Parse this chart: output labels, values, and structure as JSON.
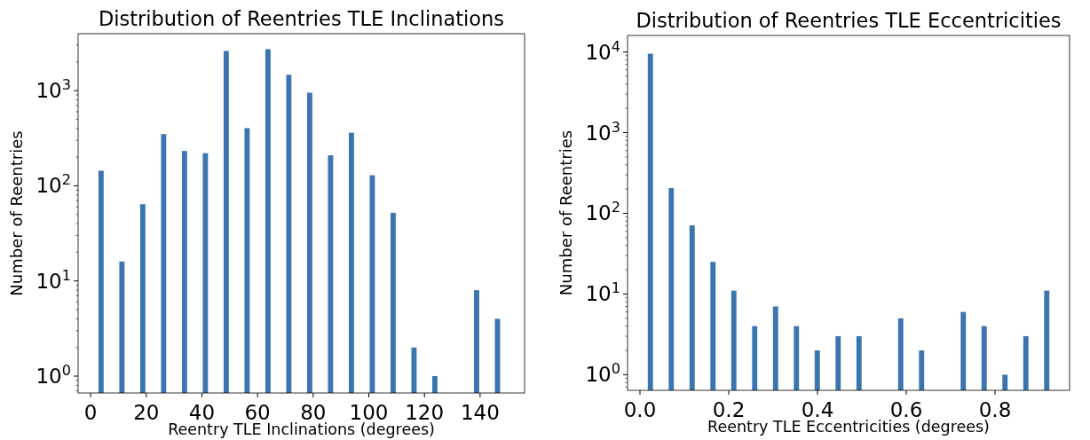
{
  "chart_data": [
    {
      "type": "histogram",
      "title": "Distribution of Reentries TLE Inclinations",
      "xlabel": "Reentry TLE Inclinations (degrees)",
      "ylabel": "Number of Reentries",
      "color": "#3b75af",
      "log": "y",
      "grid": false,
      "bins": [
        0,
        7.5,
        15,
        22.5,
        30,
        37.5,
        45,
        52.5,
        60,
        67.5,
        75,
        82.5,
        90,
        97.5,
        105,
        112.5,
        120,
        127.5,
        135,
        142.5,
        150
      ],
      "values": [
        144,
        16,
        64,
        349,
        232,
        220,
        2610,
        403,
        2725,
        1466,
        950,
        209,
        361,
        129,
        52,
        2,
        1,
        null,
        8,
        4
      ],
      "xlim": [
        -4.5,
        156
      ],
      "xticks": [
        0,
        20,
        40,
        60,
        80,
        100,
        120,
        140
      ],
      "ylim": [
        0.665,
        3960
      ],
      "yticks": [
        {
          "value": 1,
          "label": "10$^{0}$"
        },
        {
          "value": 10,
          "label": "10$^{1}$"
        },
        {
          "value": 100,
          "label": "10$^{2}$"
        },
        {
          "value": 1000,
          "label": "10$^{3}$"
        },
        {
          "value": 0.7,
          "label": null
        },
        {
          "value": 0.8,
          "label": null
        },
        {
          "value": 0.9,
          "label": null
        },
        {
          "value": 2,
          "label": null
        },
        {
          "value": 3,
          "label": null
        },
        {
          "value": 4,
          "label": null
        },
        {
          "value": 5,
          "label": null
        },
        {
          "value": 6,
          "label": null
        },
        {
          "value": 7,
          "label": null
        },
        {
          "value": 8,
          "label": null
        },
        {
          "value": 9,
          "label": null
        },
        {
          "value": 20,
          "label": null
        },
        {
          "value": 30,
          "label": null
        },
        {
          "value": 40,
          "label": null
        },
        {
          "value": 50,
          "label": null
        },
        {
          "value": 60,
          "label": null
        },
        {
          "value": 70,
          "label": null
        },
        {
          "value": 80,
          "label": null
        },
        {
          "value": 90,
          "label": null
        },
        {
          "value": 200,
          "label": null
        },
        {
          "value": 300,
          "label": null
        },
        {
          "value": 400,
          "label": null
        },
        {
          "value": 500,
          "label": null
        },
        {
          "value": 600,
          "label": null
        },
        {
          "value": 700,
          "label": null
        },
        {
          "value": 800,
          "label": null
        },
        {
          "value": 900,
          "label": null
        },
        {
          "value": 2000,
          "label": null
        },
        {
          "value": 3000,
          "label": null
        }
      ]
    },
    {
      "type": "histogram",
      "title": "Distribution of Reentries TLE Eccentricities",
      "xlabel": "Reentry TLE Eccentricities (degrees)",
      "ylabel": "Number of Reentries",
      "color": "#3b75af",
      "log": "y",
      "grid": false,
      "bins": [
        0,
        0.047,
        0.094,
        0.141,
        0.188,
        0.235,
        0.282,
        0.329,
        0.376,
        0.423,
        0.47,
        0.517,
        0.564,
        0.611,
        0.658,
        0.705,
        0.752,
        0.799,
        0.846,
        0.893,
        0.94
      ],
      "values": [
        9500,
        206,
        71,
        25,
        11,
        4,
        7,
        4,
        2,
        3,
        3,
        null,
        5,
        2,
        null,
        6,
        4,
        1,
        3,
        11
      ],
      "xlim": [
        -0.028,
        0.968
      ],
      "xticks": [
        {
          "value": 0,
          "label": "0.0"
        },
        {
          "value": 0.2,
          "label": "0.2"
        },
        {
          "value": 0.4,
          "label": "0.4"
        },
        {
          "value": 0.6,
          "label": "0.6"
        },
        {
          "value": 0.8,
          "label": "0.8"
        }
      ],
      "ylim": [
        0.64,
        16000
      ],
      "yticks": [
        {
          "value": 1,
          "label": "10$^{0}$"
        },
        {
          "value": 10,
          "label": "10$^{1}$"
        },
        {
          "value": 100,
          "label": "10$^{2}$"
        },
        {
          "value": 1000,
          "label": "10$^{3}$"
        },
        {
          "value": 10000,
          "label": "10$^{4}$"
        },
        {
          "value": 0.7,
          "label": null
        },
        {
          "value": 0.8,
          "label": null
        },
        {
          "value": 0.9,
          "label": null
        },
        {
          "value": 2,
          "label": null
        },
        {
          "value": 3,
          "label": null
        },
        {
          "value": 4,
          "label": null
        },
        {
          "value": 5,
          "label": null
        },
        {
          "value": 6,
          "label": null
        },
        {
          "value": 7,
          "label": null
        },
        {
          "value": 8,
          "label": null
        },
        {
          "value": 9,
          "label": null
        },
        {
          "value": 20,
          "label": null
        },
        {
          "value": 30,
          "label": null
        },
        {
          "value": 40,
          "label": null
        },
        {
          "value": 50,
          "label": null
        },
        {
          "value": 60,
          "label": null
        },
        {
          "value": 70,
          "label": null
        },
        {
          "value": 80,
          "label": null
        },
        {
          "value": 90,
          "label": null
        },
        {
          "value": 200,
          "label": null
        },
        {
          "value": 300,
          "label": null
        },
        {
          "value": 400,
          "label": null
        },
        {
          "value": 500,
          "label": null
        },
        {
          "value": 600,
          "label": null
        },
        {
          "value": 700,
          "label": null
        },
        {
          "value": 800,
          "label": null
        },
        {
          "value": 900,
          "label": null
        },
        {
          "value": 2000,
          "label": null
        },
        {
          "value": 3000,
          "label": null
        },
        {
          "value": 4000,
          "label": null
        },
        {
          "value": 5000,
          "label": null
        },
        {
          "value": 6000,
          "label": null
        },
        {
          "value": 7000,
          "label": null
        },
        {
          "value": 8000,
          "label": null
        },
        {
          "value": 9000,
          "label": null
        }
      ]
    }
  ]
}
